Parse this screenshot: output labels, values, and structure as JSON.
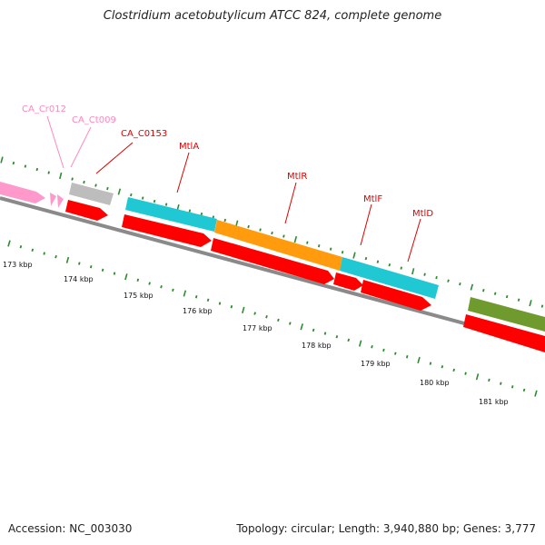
{
  "title": "Clostridium acetobutylicum ATCC 824, complete genome",
  "footer": {
    "accession": "Accession: NC_003030",
    "topology": "Topology: circular; Length: 3,940,880 bp; Genes: 3,777"
  },
  "colors": {
    "background": "#ffffff",
    "pink_feature": "#ff99cc",
    "gray_feature": "#bdbdbd",
    "red_cds": "#ff0000",
    "cyan_feature": "#1fc8d2",
    "orange_feature": "#ff9b0d",
    "olive_feature": "#6f9b2e",
    "backbone": "#8a8a8a",
    "tick_green": "#2e8b2e",
    "label_red": "#dd0000",
    "label_pink": "#ff88bb"
  },
  "scale": {
    "ticks": [
      "173 kbp",
      "174 kbp",
      "175 kbp",
      "176 kbp",
      "177 kbp",
      "178 kbp",
      "179 kbp",
      "180 kbp",
      "181 kbp"
    ]
  },
  "labels": [
    {
      "text": "CA_Cr012",
      "color": "pink"
    },
    {
      "text": "CA_Ct009",
      "color": "pink"
    },
    {
      "text": "CA_C0153",
      "color": "red"
    },
    {
      "text": "MtlA",
      "color": "red"
    },
    {
      "text": "MtlR",
      "color": "red"
    },
    {
      "text": "MtlF",
      "color": "red"
    },
    {
      "text": "MtlD",
      "color": "red"
    }
  ]
}
